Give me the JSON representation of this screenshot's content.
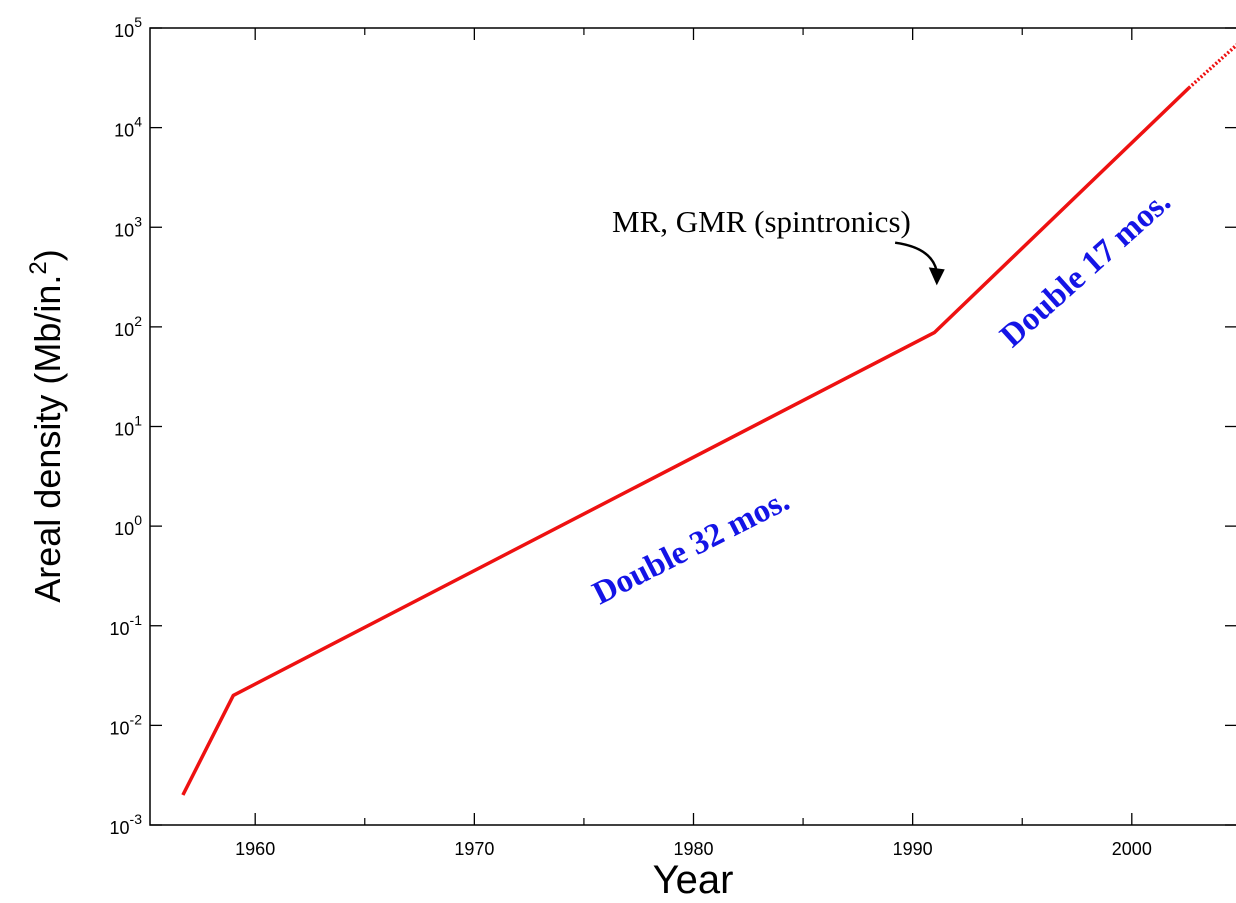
{
  "chart_data": {
    "type": "line",
    "xlabel": "Year",
    "ylabel": "Areal density (Mb/in.",
    "ylabel_sup": "2",
    "ylabel_close": ")",
    "xlim": [
      1955.2,
      2004.8
    ],
    "ylim": [
      0.001,
      100000
    ],
    "yscale": "log",
    "grid": false,
    "x_ticks": [
      1960,
      1970,
      1980,
      1990,
      2000
    ],
    "x_tick_labels": [
      "1960",
      "1970",
      "1980",
      "1990",
      "2000"
    ],
    "y_ticks": [
      {
        "value": 0.001,
        "base": "10",
        "exp": "-3"
      },
      {
        "value": 0.01,
        "base": "10",
        "exp": "-2"
      },
      {
        "value": 0.1,
        "base": "10",
        "exp": "-1"
      },
      {
        "value": 1,
        "base": "10",
        "exp": "0"
      },
      {
        "value": 10,
        "base": "10",
        "exp": "1"
      },
      {
        "value": 100,
        "base": "10",
        "exp": "2"
      },
      {
        "value": 1000,
        "base": "10",
        "exp": "3"
      },
      {
        "value": 10000,
        "base": "10",
        "exp": "4"
      },
      {
        "value": 100000,
        "base": "10",
        "exp": "5"
      }
    ],
    "series": [
      {
        "color": "#ee1111",
        "solid": {
          "x": [
            1956.7,
            1959.0,
            1991.0,
            2002.6
          ],
          "y": [
            0.002,
            0.02,
            88,
            25000
          ]
        },
        "dotted": {
          "x": [
            2002.6,
            2004.8
          ],
          "y": [
            25000,
            68000
          ]
        }
      }
    ],
    "annotations": [
      {
        "text": "Double 32 mos.",
        "x": 1980.1,
        "y": 0.5,
        "angle": -27,
        "color": "#1414e6"
      },
      {
        "text": "Double 17 mos.",
        "x": 1998.2,
        "y": 320,
        "angle": -42,
        "color": "#1414e6"
      },
      {
        "text": "MR, GMR (spintronics)",
        "x": 1983.1,
        "y": 900,
        "color": "#000000"
      }
    ],
    "arrow": {
      "from": [
        1989.2,
        700
      ],
      "to": [
        1991.1,
        300
      ],
      "color": "#000000"
    }
  }
}
